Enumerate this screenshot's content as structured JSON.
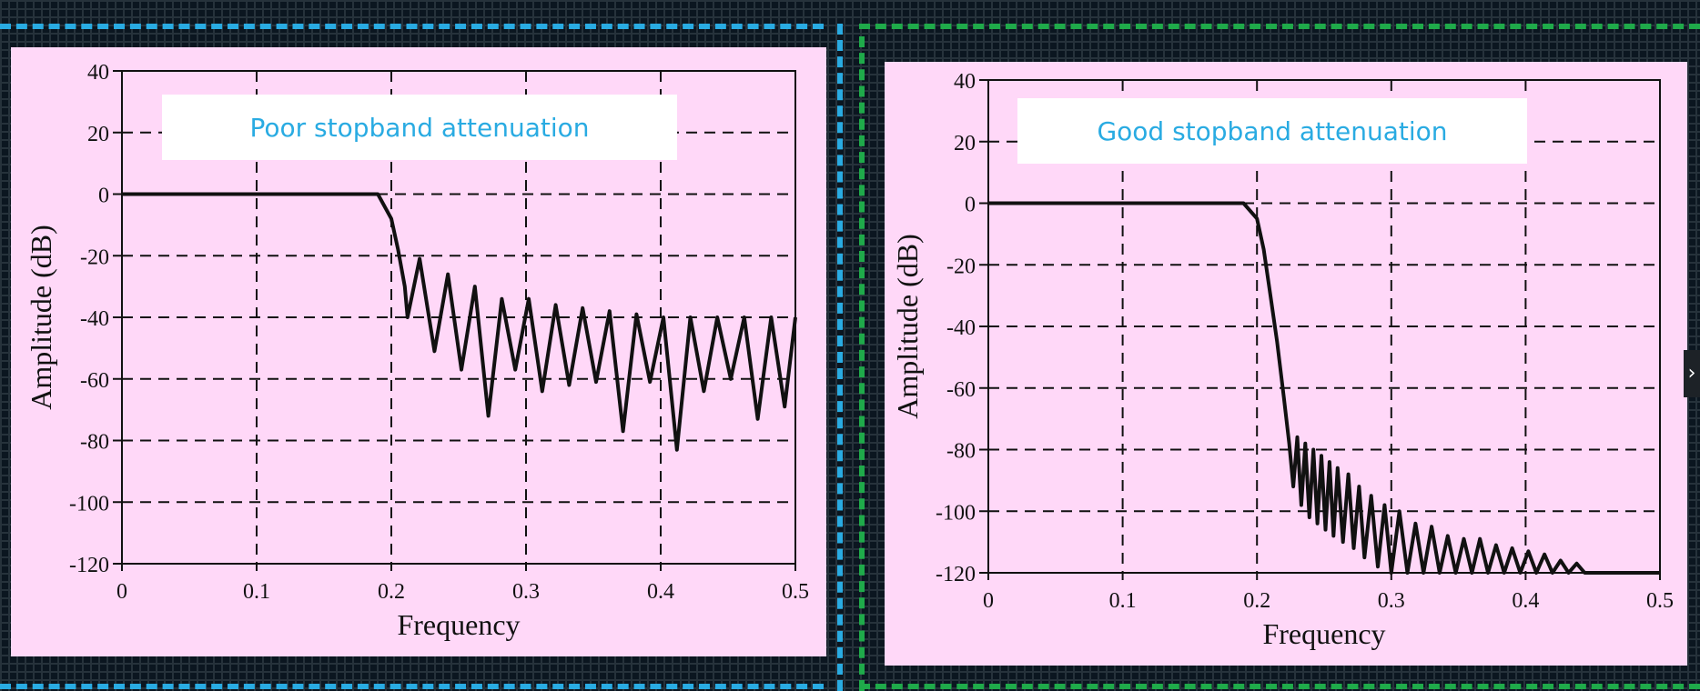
{
  "colors": {
    "background": "#0b1620",
    "panel": "#ffd8f8",
    "left_divider": "#29abe2",
    "right_divider": "#1faa4a",
    "callout_text": "#29abe2",
    "trace": "#111111"
  },
  "next_button": {
    "icon": "chevron-right-icon",
    "glyph": "›"
  },
  "chart_data": [
    {
      "type": "line",
      "annotation": "Poor stopband attenuation",
      "xlabel": "Frequency",
      "ylabel": "Amplitude (dB)",
      "xlim": [
        0,
        0.5
      ],
      "ylim": [
        -120,
        40
      ],
      "xticks": [
        "0",
        "0.1",
        "0.2",
        "0.3",
        "0.4",
        "0.5"
      ],
      "yticks": [
        "40",
        "20",
        "0",
        "-20",
        "-40",
        "-60",
        "-80",
        "-100",
        "-120"
      ],
      "grid": true,
      "passband_edge": 0.19,
      "series": [
        {
          "x": [
            0,
            0.19,
            0.2,
            0.205,
            0.21,
            0.212,
            0.221,
            0.232,
            0.242,
            0.252,
            0.262,
            0.272,
            0.282,
            0.292,
            0.302,
            0.312,
            0.322,
            0.332,
            0.342,
            0.352,
            0.362,
            0.372,
            0.382,
            0.392,
            0.402,
            0.412,
            0.422,
            0.432,
            0.442,
            0.452,
            0.462,
            0.472,
            0.482,
            0.492,
            0.5
          ],
          "y": [
            0,
            0,
            -8,
            -18,
            -30,
            -40,
            -21,
            -51,
            -26,
            -57,
            -30,
            -72,
            -34,
            -57,
            -34,
            -64,
            -36,
            -62,
            -37,
            -61,
            -38,
            -77,
            -39,
            -61,
            -40,
            -83,
            -40,
            -64,
            -40,
            -60,
            -40,
            -73,
            -40,
            -69,
            -40
          ]
        }
      ]
    },
    {
      "type": "line",
      "annotation": "Good stopband attenuation",
      "xlabel": "Frequency",
      "ylabel": "Amplitude (dB)",
      "xlim": [
        0,
        0.5
      ],
      "ylim": [
        -120,
        40
      ],
      "xticks": [
        "0",
        "0.1",
        "0.2",
        "0.3",
        "0.4",
        "0.5"
      ],
      "yticks": [
        "40",
        "20",
        "0",
        "-20",
        "-40",
        "-60",
        "-80",
        "-100",
        "-120"
      ],
      "grid": true,
      "passband_edge": 0.19,
      "series": [
        {
          "x": [
            0,
            0.19,
            0.2,
            0.205,
            0.21,
            0.215,
            0.22,
            0.224,
            0.227,
            0.23,
            0.233,
            0.236,
            0.239,
            0.242,
            0.245,
            0.248,
            0.251,
            0.254,
            0.257,
            0.26,
            0.264,
            0.268,
            0.272,
            0.276,
            0.28,
            0.285,
            0.29,
            0.295,
            0.3,
            0.306,
            0.312,
            0.318,
            0.324,
            0.33,
            0.336,
            0.342,
            0.348,
            0.354,
            0.36,
            0.366,
            0.372,
            0.378,
            0.384,
            0.39,
            0.396,
            0.402,
            0.408,
            0.414,
            0.42,
            0.426,
            0.432,
            0.438,
            0.444,
            0.5
          ],
          "y": [
            0,
            0,
            -5,
            -15,
            -30,
            -45,
            -63,
            -78,
            -92,
            -76,
            -98,
            -78,
            -102,
            -80,
            -104,
            -82,
            -106,
            -84,
            -108,
            -86,
            -110,
            -88,
            -112,
            -92,
            -115,
            -95,
            -118,
            -98,
            -120,
            -100,
            -120,
            -104,
            -120,
            -105,
            -120,
            -108,
            -120,
            -109,
            -120,
            -109,
            -120,
            -111,
            -120,
            -112,
            -120,
            -113,
            -120,
            -114,
            -120,
            -116,
            -120,
            -117,
            -120,
            -120
          ]
        }
      ]
    }
  ]
}
